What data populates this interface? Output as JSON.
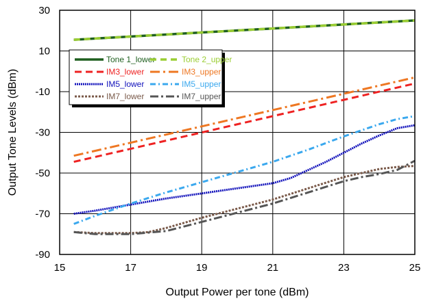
{
  "chart_data": {
    "type": "line",
    "xlabel": "Output Power per tone (dBm)",
    "ylabel": "Output Tone Levels (dBm)",
    "xlim": [
      15,
      25
    ],
    "ylim": [
      -90,
      30
    ],
    "xticks": [
      "15",
      "17",
      "19",
      "21",
      "23",
      "25"
    ],
    "yticks": [
      "-90",
      "-70",
      "-50",
      "-30",
      "-10",
      "10",
      "30"
    ],
    "grid": true,
    "legend_position": "upper-left",
    "series": [
      {
        "name": "Tone 1_lower",
        "color": "#1f5f1f",
        "dash": "",
        "width": 3.5,
        "x": [
          15.4,
          25.0
        ],
        "y": [
          15.5,
          25.0
        ]
      },
      {
        "name": "Tone 2_upper",
        "color": "#9acd32",
        "dash": "9 6",
        "width": 3.5,
        "x": [
          15.4,
          25.0
        ],
        "y": [
          15.5,
          25.0
        ]
      },
      {
        "name": "IM3_lower",
        "color": "#ee2222",
        "dash": "10 6",
        "width": 3,
        "x": [
          15.4,
          25.0
        ],
        "y": [
          -44.5,
          -6.0
        ]
      },
      {
        "name": "IM3_upper",
        "color": "#ee7722",
        "dash": "14 5 3 5",
        "width": 3,
        "x": [
          15.4,
          25.0
        ],
        "y": [
          -41.5,
          -3.0
        ]
      },
      {
        "name": "IM5_lower",
        "color": "#1111bb",
        "dash": "2 1",
        "width": 3,
        "x": [
          15.4,
          16,
          17,
          18,
          19,
          20,
          21,
          21.5,
          22,
          22.5,
          23,
          23.5,
          24,
          24.5,
          25.0
        ],
        "y": [
          -70,
          -68.5,
          -65.5,
          -62.5,
          -60,
          -57.5,
          -55,
          -52.5,
          -48.5,
          -44.5,
          -40,
          -35.5,
          -31.5,
          -28,
          -26.5
        ]
      },
      {
        "name": "IM5_upper",
        "color": "#3aa8ee",
        "dash": "8 4 2 4",
        "width": 3,
        "x": [
          15.4,
          16,
          17,
          18,
          19,
          20,
          21,
          22,
          23,
          24,
          24.5,
          25.0
        ],
        "y": [
          -75,
          -71,
          -65,
          -59.5,
          -54.5,
          -49.5,
          -44.5,
          -38.5,
          -32,
          -26,
          -23.5,
          -22
        ]
      },
      {
        "name": "IM7_lower",
        "color": "#7a5a4a",
        "dash": "3 2",
        "width": 3,
        "x": [
          15.4,
          16,
          17,
          17.5,
          18,
          19,
          20,
          21,
          22,
          23,
          23.5,
          24,
          24.5,
          25.0
        ],
        "y": [
          -79,
          -79.5,
          -79.5,
          -79,
          -77,
          -72,
          -67.5,
          -63,
          -57.5,
          -52,
          -50,
          -48,
          -47,
          -46.5
        ]
      },
      {
        "name": "IM7_upper",
        "color": "#555555",
        "dash": "12 4 3 4",
        "width": 3,
        "x": [
          15.4,
          16,
          17,
          18,
          19,
          20,
          21,
          22,
          23,
          23.5,
          24,
          24.5,
          25.0
        ],
        "y": [
          -79,
          -80,
          -80,
          -78.5,
          -74,
          -69.5,
          -65,
          -59.5,
          -54,
          -52,
          -50.5,
          -48.5,
          -44
        ]
      }
    ]
  }
}
